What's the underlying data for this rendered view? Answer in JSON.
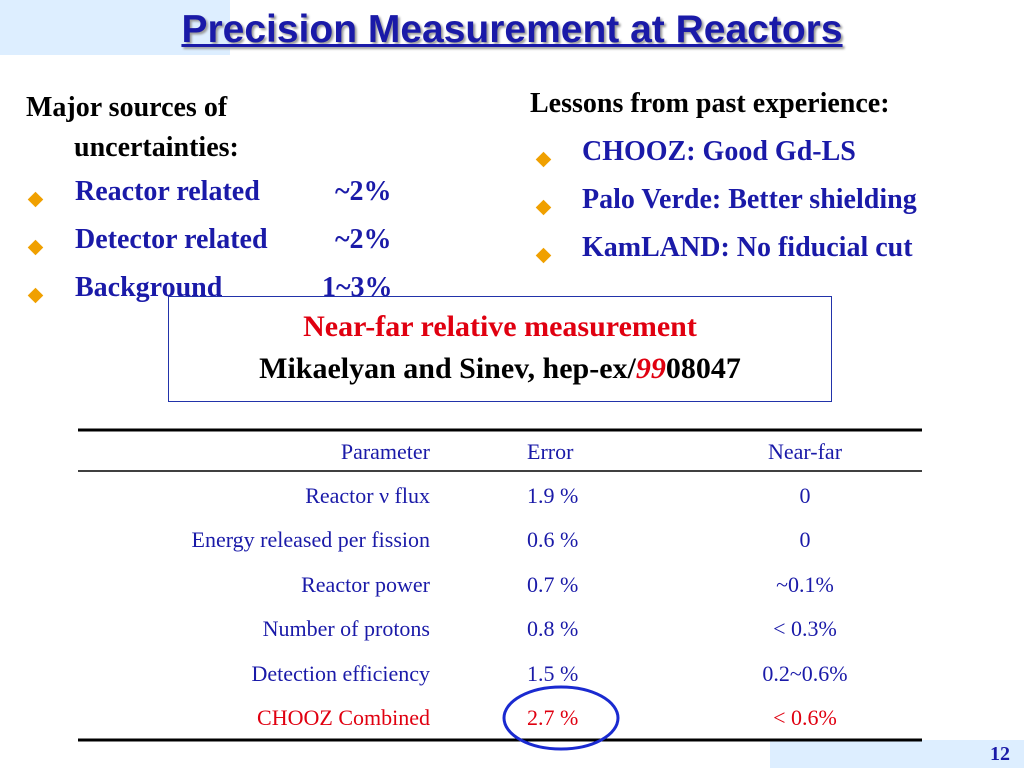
{
  "title": "Precision Measurement at Reactors",
  "left": {
    "heading": "Major sources of uncertainties:",
    "items": [
      {
        "label": "Reactor related",
        "value": "~2%"
      },
      {
        "label": "Detector related",
        "value": "~2%"
      },
      {
        "label": "Background",
        "value": "1~3%"
      }
    ]
  },
  "right": {
    "heading": "Lessons from past experience:",
    "items": [
      "CHOOZ: Good Gd-LS",
      "Palo Verde: Better shielding",
      "KamLAND: No fiducial cut"
    ]
  },
  "box": {
    "line1": "Near-far relative measurement",
    "line2": [
      "Mikaelyan and Sinev, hep-ex/",
      "99",
      "08047"
    ]
  },
  "table": {
    "header": [
      "Parameter",
      "Error",
      "Near-far"
    ],
    "rows": [
      [
        "Reactor ν flux",
        "1.9 %",
        "0"
      ],
      [
        "Energy released per fission",
        "0.6 %",
        "0"
      ],
      [
        "Reactor power",
        "0.7 %",
        "~0.1%"
      ],
      [
        "Number of protons",
        "0.8 %",
        "< 0.3%"
      ],
      [
        "Detection efficiency",
        "1.5 %",
        "0.2~0.6%"
      ],
      [
        "CHOOZ Combined",
        "2.7 %",
        "< 0.6%"
      ]
    ]
  },
  "page_number": "12"
}
